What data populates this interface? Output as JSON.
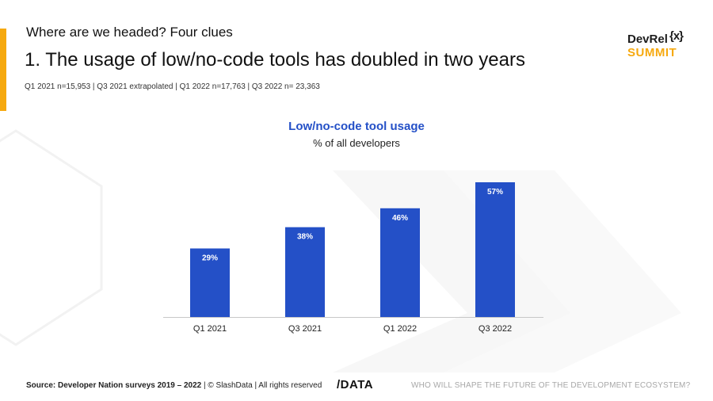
{
  "header": {
    "subtitle": "Where are we headed? Four clues",
    "title": "1. The usage of low/no-code tools has doubled in two years",
    "sample_note": "Q1 2021 n=15,953 | Q3 2021 extrapolated | Q1 2022 n=17,763 | Q3 2022 n= 23,363"
  },
  "logo": {
    "line1": "DevRel",
    "mark": "{x}",
    "line2": "SUMMIT"
  },
  "colors": {
    "accent": "#f6a90f",
    "bar": "#2450c7",
    "title_blue": "#2450c7"
  },
  "chart_data": {
    "type": "bar",
    "title": "Low/no-code tool usage",
    "subtitle": "% of all developers",
    "categories": [
      "Q1 2021",
      "Q3 2021",
      "Q1 2022",
      "Q3 2022"
    ],
    "values": [
      29,
      38,
      46,
      57
    ],
    "value_labels": [
      "29%",
      "38%",
      "46%",
      "57%"
    ],
    "xlabel": "",
    "ylabel": "",
    "ylim": [
      0,
      57
    ],
    "grid": false
  },
  "footer": {
    "source_label": "Source: Developer Nation surveys 2019 – 2022",
    "source_rest": " | © SlashData | All rights reserved",
    "brand": "/DATA",
    "tagline": "WHO WILL SHAPE THE FUTURE OF THE DEVELOPMENT ECOSYSTEM?"
  }
}
